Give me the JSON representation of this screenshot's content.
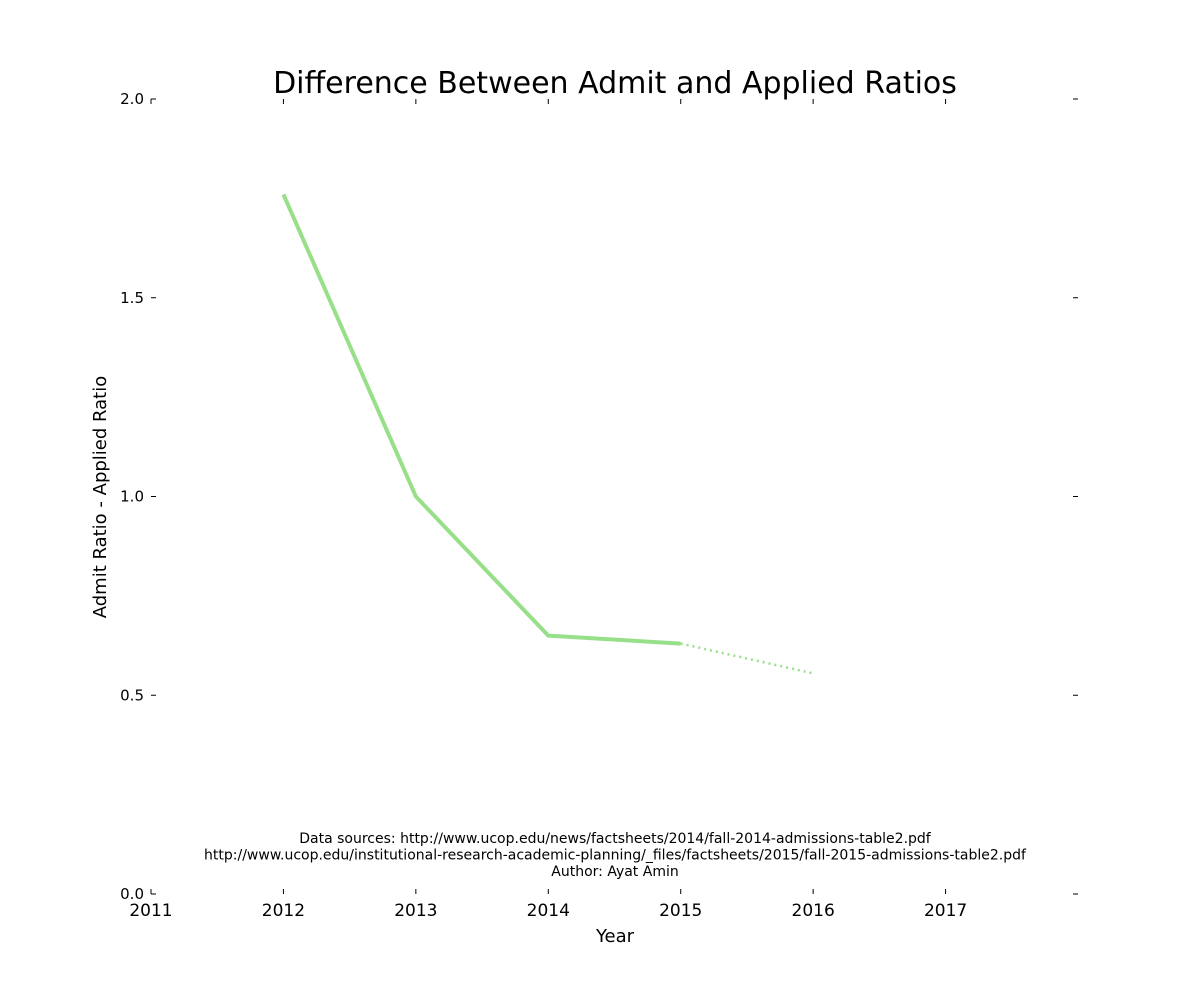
{
  "chart_data": {
    "type": "line",
    "title": "Difference Between Admit and Applied Ratios",
    "xlabel": "Year",
    "ylabel": "Admit Ratio - Applied Ratio",
    "xlim": [
      2011,
      2018
    ],
    "ylim": [
      0.0,
      2.0
    ],
    "xticks": [
      "2011",
      "2012",
      "2013",
      "2014",
      "2015",
      "2016",
      "2017"
    ],
    "yticks": [
      "0.0",
      "0.5",
      "1.0",
      "1.5",
      "2.0"
    ],
    "grid": false,
    "series": [
      {
        "style": "solid",
        "color": "#98df8a",
        "x": [
          2012,
          2013,
          2014,
          2015
        ],
        "y": [
          1.76,
          1.0,
          0.65,
          0.63
        ]
      },
      {
        "style": "dotted",
        "color": "#98df8a",
        "x": [
          2015,
          2016
        ],
        "y": [
          0.63,
          0.555
        ]
      }
    ],
    "annotations": [
      "Data sources: http://www.ucop.edu/news/factsheets/2014/fall-2014-admissions-table2.pdf",
      "http://www.ucop.edu/institutional-research-academic-planning/_files/factsheets/2015/fall-2015-admissions-table2.pdf",
      "Author: Ayat Amin"
    ]
  }
}
